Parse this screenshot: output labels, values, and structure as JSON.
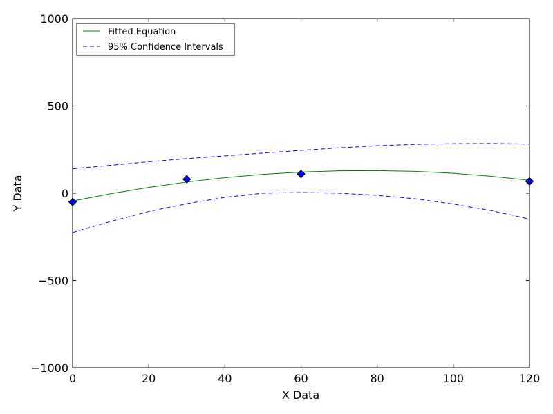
{
  "chart_data": {
    "type": "line",
    "title": "",
    "xlabel": "X Data",
    "ylabel": "Y Data",
    "xlim": [
      0,
      120
    ],
    "ylim": [
      -1000,
      1000
    ],
    "xticks": [
      0,
      20,
      40,
      60,
      80,
      100,
      120
    ],
    "yticks": [
      -1000,
      -500,
      0,
      500,
      1000
    ],
    "xtick_labels": [
      "0",
      "20",
      "40",
      "60",
      "80",
      "100",
      "120"
    ],
    "ytick_labels": [
      "−1000",
      "−500",
      "0",
      "500",
      "1000"
    ],
    "grid": false,
    "legend_position": "top-left",
    "data_points": {
      "x": [
        0,
        30,
        60,
        120
      ],
      "y": [
        -50,
        80,
        110,
        68
      ],
      "marker": "diamond",
      "color": "#0000ff"
    },
    "series": [
      {
        "name": "Fitted Equation",
        "style": "solid",
        "color": "#008000",
        "x": [
          0,
          10,
          20,
          30,
          40,
          50,
          60,
          70,
          80,
          90,
          100,
          110,
          120
        ],
        "y": [
          -45,
          -3,
          33,
          64,
          89,
          108,
          121,
          128,
          129,
          125,
          114,
          97,
          74
        ]
      },
      {
        "name": "95% Confidence Intervals",
        "style": "dashed",
        "color": "#0000ff",
        "x": [
          0,
          10,
          20,
          30,
          40,
          50,
          60,
          70,
          80,
          90,
          100,
          110,
          120
        ],
        "y": [
          140,
          160,
          180,
          198,
          214,
          230,
          245,
          260,
          272,
          280,
          284,
          285,
          282
        ]
      },
      {
        "name": "",
        "style": "dashed",
        "color": "#0000ff",
        "x": [
          0,
          10,
          20,
          30,
          40,
          50,
          60,
          70,
          80,
          90,
          100,
          110,
          120
        ],
        "y": [
          -225,
          -162,
          -105,
          -60,
          -24,
          0,
          4,
          0,
          -12,
          -32,
          -62,
          -100,
          -148
        ]
      }
    ]
  }
}
